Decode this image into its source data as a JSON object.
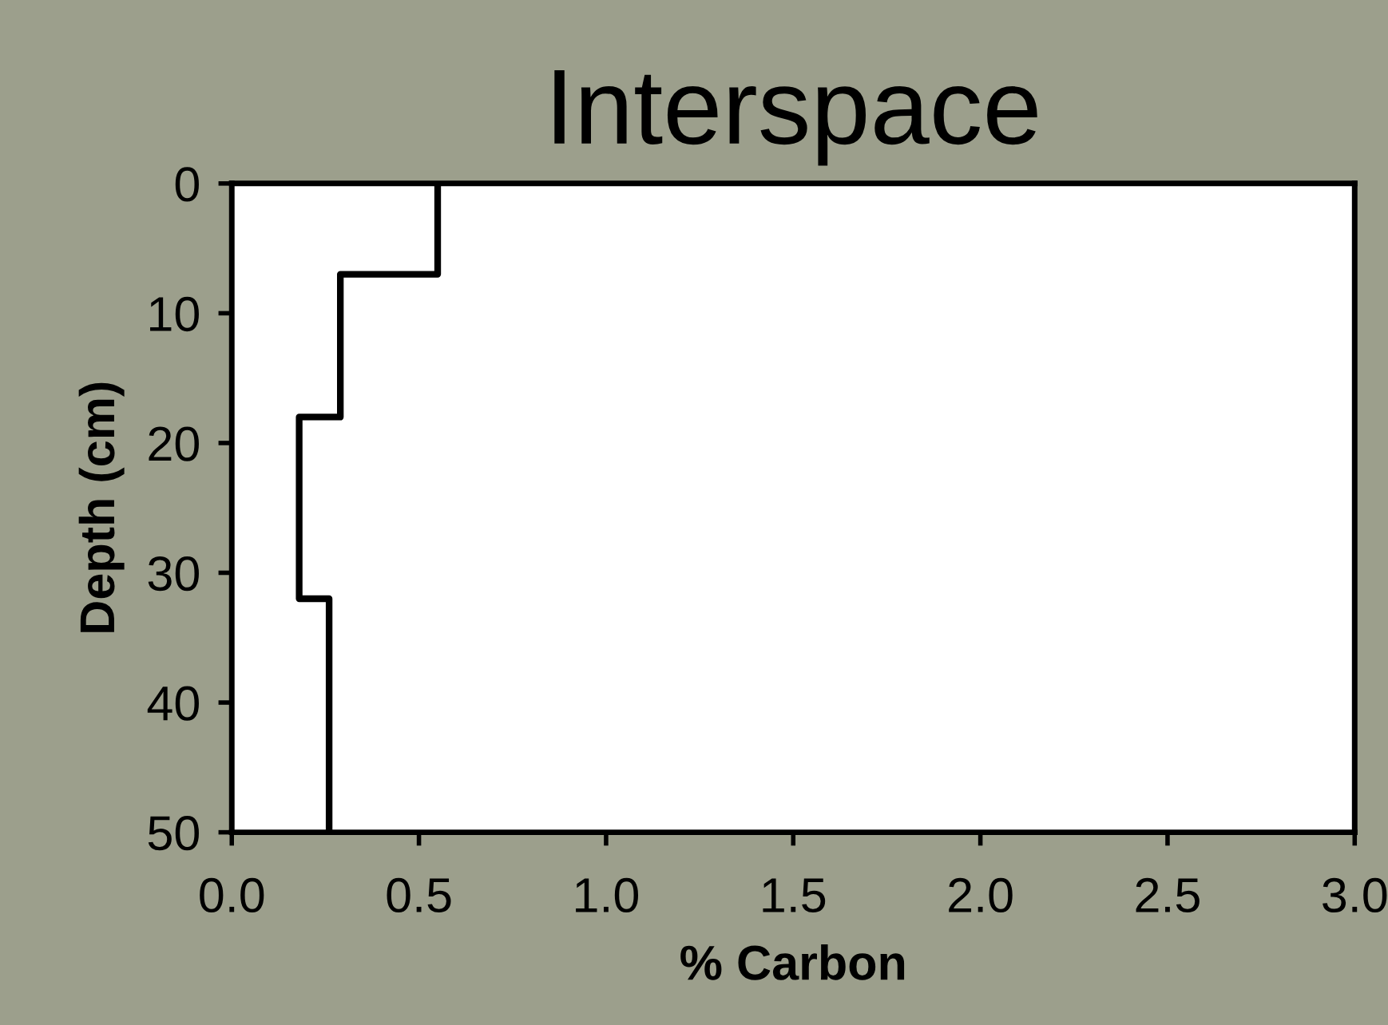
{
  "chart_data": {
    "type": "line",
    "title": "Interspace",
    "xlabel": "% Carbon",
    "ylabel": "Depth (cm)",
    "x": [
      0.55,
      0.55,
      0.29,
      0.29,
      0.18,
      0.18,
      0.26,
      0.26
    ],
    "series": [
      {
        "color": "#000000",
        "values": [
          0,
          7,
          7,
          18,
          18,
          32,
          32,
          50
        ]
      }
    ],
    "xlim": [
      0,
      3
    ],
    "xticks": [
      {
        "value": 0,
        "label": "0.0"
      },
      {
        "value": 0.5,
        "label": "0.5"
      },
      {
        "value": 1,
        "label": "1.0"
      },
      {
        "value": 1.5,
        "label": "1.5"
      },
      {
        "value": 2,
        "label": "2.0"
      },
      {
        "value": 2.5,
        "label": "2.5"
      },
      {
        "value": 3,
        "label": "3.0"
      }
    ],
    "ylim": [
      50,
      0
    ],
    "yticks": [
      0,
      10,
      20,
      30,
      40,
      50
    ],
    "grid": false,
    "legend": false,
    "marker": "none",
    "line_style": "solid"
  }
}
